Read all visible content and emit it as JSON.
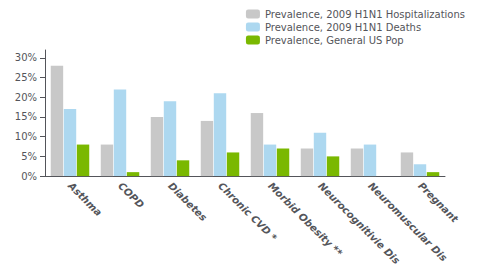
{
  "chart_data": {
    "type": "bar",
    "categories": [
      "Asthma",
      "COPD",
      "Diabetes",
      "Chronic CVD *",
      "Morbid Obesity **",
      "Neurocognitivie Dis",
      "Neuromuscular Dis",
      "Pregnant"
    ],
    "series": [
      {
        "name": "Prevalence, 2009 H1N1 Hospitalizations",
        "color": "#c8c8c8",
        "values": [
          28,
          8,
          15,
          14,
          16,
          7,
          7,
          6
        ]
      },
      {
        "name": "Prevalence, 2009 H1N1 Deaths",
        "color": "#add8f0",
        "values": [
          17,
          22,
          19,
          21,
          8,
          11,
          8,
          3
        ]
      },
      {
        "name": "Prevalence, General US Pop",
        "color": "#7ab800",
        "values": [
          8,
          1,
          4,
          6,
          7,
          5,
          0,
          1
        ]
      }
    ],
    "ylim": [
      0,
      32
    ],
    "yticks": [
      {
        "value": 0,
        "label": "0%"
      },
      {
        "value": 5,
        "label": "5%"
      },
      {
        "value": 10,
        "label": "10%"
      },
      {
        "value": 15,
        "label": "15%"
      },
      {
        "value": 20,
        "label": "20%"
      },
      {
        "value": 25,
        "label": "25%"
      },
      {
        "value": 30,
        "label": "30%"
      }
    ],
    "grid": false,
    "legend": "upper right"
  }
}
